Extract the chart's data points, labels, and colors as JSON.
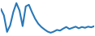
{
  "x": [
    0,
    1,
    2,
    3,
    4,
    5,
    6,
    7,
    8,
    9,
    10,
    11,
    12,
    13,
    14,
    15,
    16,
    17,
    18,
    19,
    20,
    21,
    22,
    23,
    24,
    25,
    26,
    27,
    28,
    29,
    30
  ],
  "y": [
    0.5,
    0.1,
    -0.9,
    -0.5,
    0.3,
    0.85,
    0.4,
    -0.55,
    0.65,
    0.75,
    0.3,
    -0.1,
    -0.4,
    -0.6,
    -0.75,
    -0.88,
    -0.95,
    -0.88,
    -0.78,
    -0.82,
    -0.7,
    -0.6,
    -0.72,
    -0.65,
    -0.58,
    -0.68,
    -0.6,
    -0.65,
    -0.58,
    -0.62,
    -0.55
  ],
  "line_color": "#2878b8",
  "linewidth": 1.5,
  "background_color": "#ffffff",
  "ylim": [
    -1.1,
    1.0
  ]
}
